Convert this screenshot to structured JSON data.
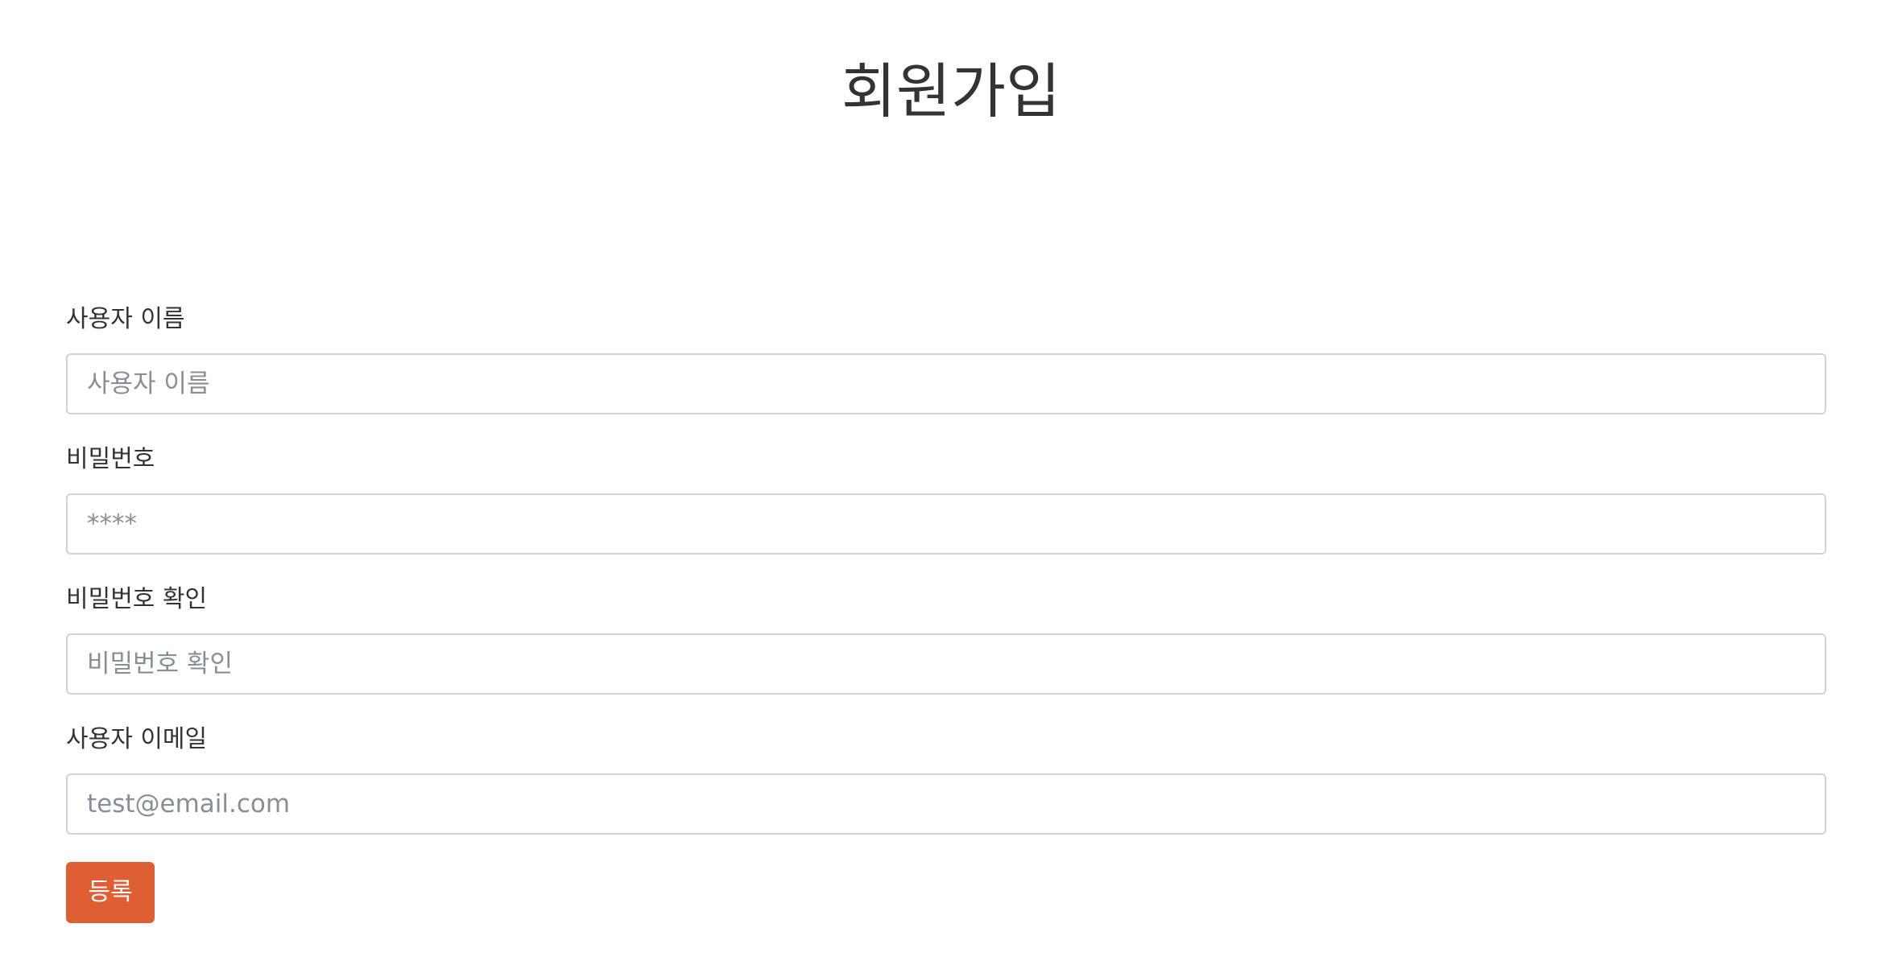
{
  "page": {
    "title": "회원가입"
  },
  "form": {
    "username": {
      "label": "사용자 이름",
      "placeholder": "사용자 이름",
      "value": ""
    },
    "password": {
      "label": "비밀번호",
      "placeholder": "****",
      "value": ""
    },
    "password_confirm": {
      "label": "비밀번호 확인",
      "placeholder": "비밀번호 확인",
      "value": ""
    },
    "email": {
      "label": "사용자 이메일",
      "placeholder": "test@email.com",
      "value": ""
    },
    "submit_label": "등록"
  },
  "colors": {
    "text": "#333333",
    "input_border": "#cfd4d9",
    "placeholder": "#868e96",
    "submit_button": "#e05e34",
    "submit_text": "#ffffff",
    "background": "#ffffff"
  }
}
